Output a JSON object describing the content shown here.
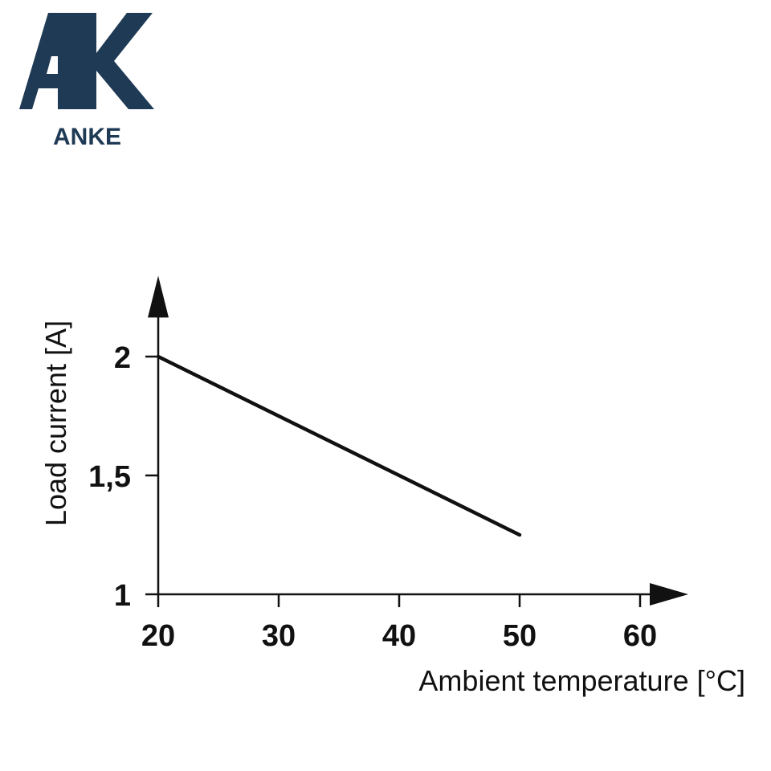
{
  "brand": {
    "name": "ANKE",
    "monogram": "AK",
    "color": "#1f3a55"
  },
  "chart_data": {
    "type": "line",
    "title": "",
    "xlabel": "Ambient temperature [°C]",
    "ylabel": "Load current [A]",
    "x_ticks": [
      20,
      30,
      40,
      50,
      60
    ],
    "x_tick_labels": [
      "20",
      "30",
      "40",
      "50",
      "60"
    ],
    "y_ticks": [
      1,
      1.5,
      2
    ],
    "y_tick_labels": [
      "1",
      "1,5",
      "2"
    ],
    "xlim": [
      20,
      64
    ],
    "ylim": [
      1,
      2.34
    ],
    "grid": false,
    "series": [
      {
        "x": [
          20,
          50
        ],
        "y": [
          2.0,
          1.25
        ],
        "color": "#111111"
      }
    ]
  }
}
